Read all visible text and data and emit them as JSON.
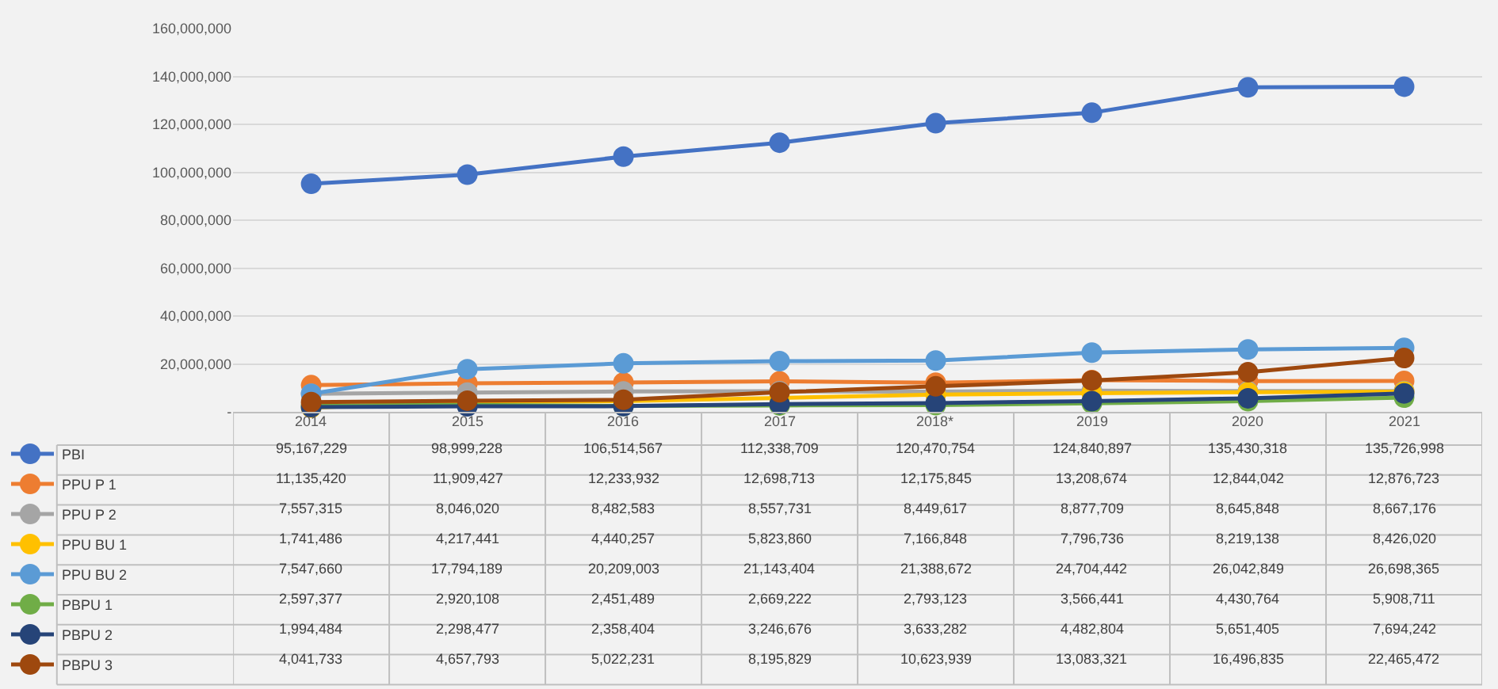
{
  "chart_data": {
    "type": "line",
    "categories": [
      "2014",
      "2015",
      "2016",
      "2017",
      "2018*",
      "2019",
      "2020",
      "2021"
    ],
    "series": [
      {
        "name": "PBI",
        "color": "#4472c4",
        "values": [
          95167229,
          98999228,
          106514567,
          112338709,
          120470754,
          124840897,
          135430318,
          135726998
        ],
        "value_labels": [
          "95,167,229",
          "98,999,228",
          "106,514,567",
          "112,338,709",
          "120,470,754",
          "124,840,897",
          "135,430,318",
          "135,726,998"
        ]
      },
      {
        "name": "PPU P 1",
        "color": "#ed7d31",
        "values": [
          11135420,
          11909427,
          12233932,
          12698713,
          12175845,
          13208674,
          12844042,
          12876723
        ],
        "value_labels": [
          "11,135,420",
          "11,909,427",
          "12,233,932",
          "12,698,713",
          "12,175,845",
          "13,208,674",
          "12,844,042",
          "12,876,723"
        ]
      },
      {
        "name": "PPU P 2",
        "color": "#a5a5a5",
        "values": [
          7557315,
          8046020,
          8482583,
          8557731,
          8449617,
          8877709,
          8645848,
          8667176
        ],
        "value_labels": [
          "7,557,315",
          "8,046,020",
          "8,482,583",
          "8,557,731",
          "8,449,617",
          "8,877,709",
          "8,645,848",
          "8,667,176"
        ]
      },
      {
        "name": "PPU BU 1",
        "color": "#ffc000",
        "values": [
          1741486,
          4217441,
          4440257,
          5823860,
          7166848,
          7796736,
          8219138,
          8426020
        ],
        "value_labels": [
          "1,741,486",
          "4,217,441",
          "4,440,257",
          "5,823,860",
          "7,166,848",
          "7,796,736",
          "8,219,138",
          "8,426,020"
        ]
      },
      {
        "name": "PPU BU 2",
        "color": "#5b9bd5",
        "values": [
          7547660,
          17794189,
          20209003,
          21143404,
          21388672,
          24704442,
          26042849,
          26698365
        ],
        "value_labels": [
          "7,547,660",
          "17,794,189",
          "20,209,003",
          "21,143,404",
          "21,388,672",
          "24,704,442",
          "26,042,849",
          "26,698,365"
        ]
      },
      {
        "name": "PBPU 1",
        "color": "#70ad47",
        "values": [
          2597377,
          2920108,
          2451489,
          2669222,
          2793123,
          3566441,
          4430764,
          5908711
        ],
        "value_labels": [
          "2,597,377",
          "2,920,108",
          "2,451,489",
          "2,669,222",
          "2,793,123",
          "3,566,441",
          "4,430,764",
          "5,908,711"
        ]
      },
      {
        "name": "PBPU 2",
        "color": "#264478",
        "values": [
          1994484,
          2298477,
          2358404,
          3246676,
          3633282,
          4482804,
          5651405,
          7694242
        ],
        "value_labels": [
          "1,994,484",
          "2,298,477",
          "2,358,404",
          "3,246,676",
          "3,633,282",
          "4,482,804",
          "5,651,405",
          "7,694,242"
        ]
      },
      {
        "name": "PBPU 3",
        "color": "#9e480e",
        "values": [
          4041733,
          4657793,
          5022231,
          8195829,
          10623939,
          13083321,
          16496835,
          22465472
        ],
        "value_labels": [
          "4,041,733",
          "4,657,793",
          "5,022,231",
          "8,195,829",
          "10,623,939",
          "13,083,321",
          "16,496,835",
          "22,465,472"
        ]
      }
    ],
    "ylim": [
      0,
      160000000
    ],
    "yticks": [
      {
        "value": 0,
        "label": "-"
      },
      {
        "value": 20000000,
        "label": "20,000,000"
      },
      {
        "value": 40000000,
        "label": "40,000,000"
      },
      {
        "value": 60000000,
        "label": "60,000,000"
      },
      {
        "value": 80000000,
        "label": "80,000,000"
      },
      {
        "value": 100000000,
        "label": "100,000,000"
      },
      {
        "value": 120000000,
        "label": "120,000,000"
      },
      {
        "value": 140000000,
        "label": "140,000,000"
      },
      {
        "value": 160000000,
        "label": "160,000,000"
      }
    ],
    "grid": "y",
    "marker": "circle",
    "line_style": "solid",
    "legend": "bottom left"
  }
}
